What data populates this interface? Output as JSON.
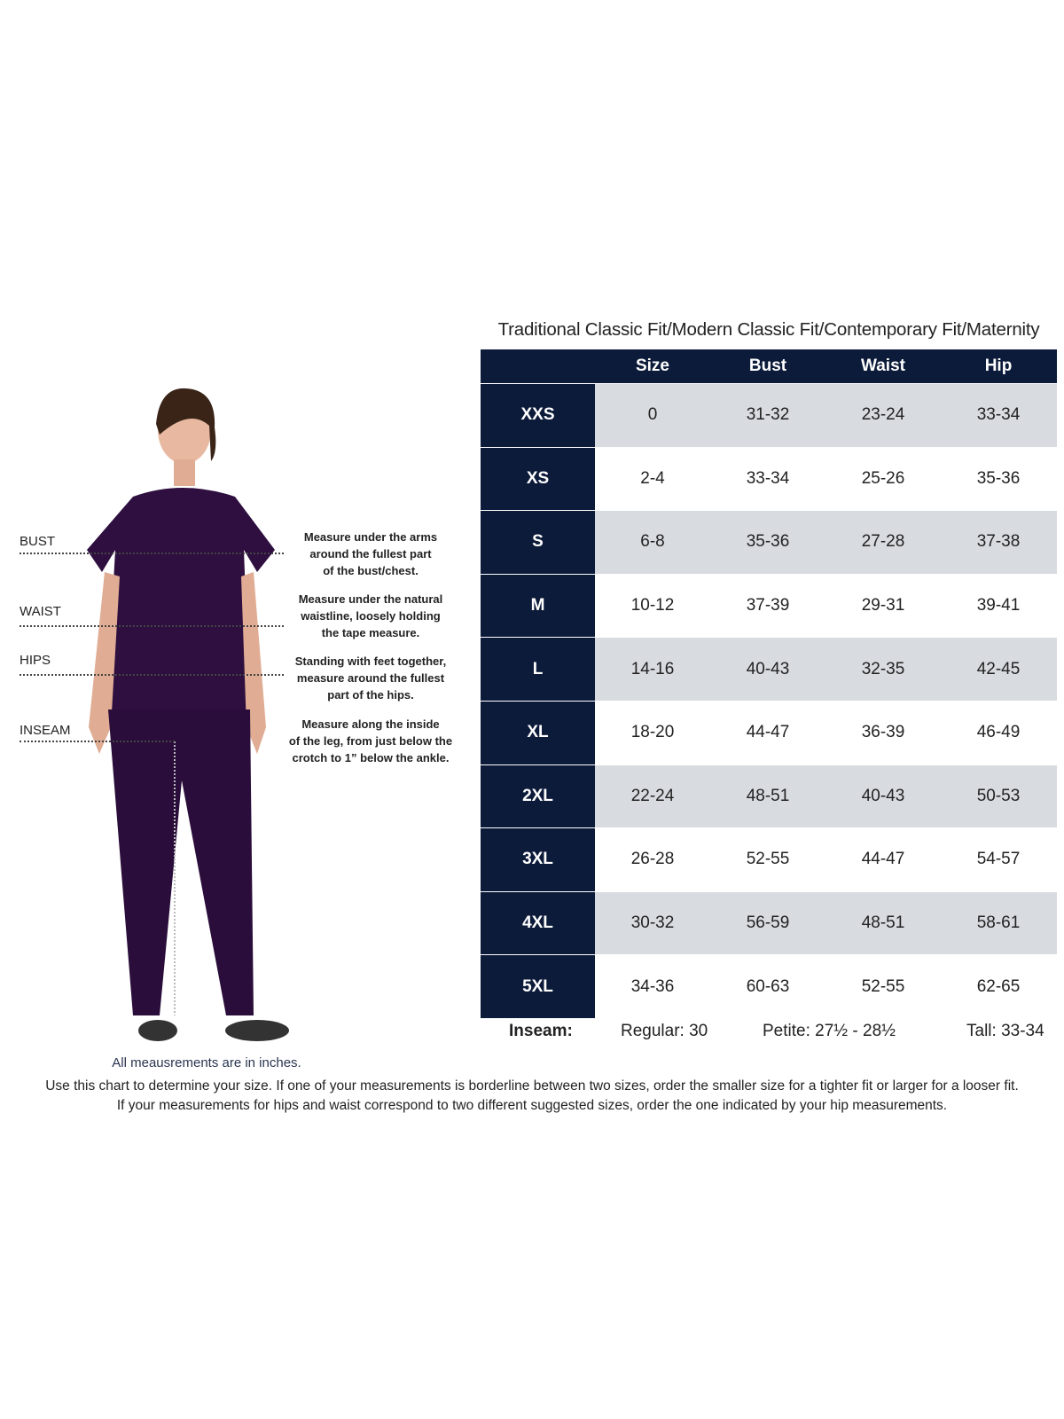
{
  "title": "Traditional Classic Fit/Modern Classic Fit/Contemporary Fit/Maternity",
  "table": {
    "columns": [
      "Size",
      "Bust",
      "Waist",
      "Hip"
    ],
    "rows": [
      {
        "label": "XXS",
        "size": "0",
        "bust": "31-32",
        "waist": "23-24",
        "hip": "33-34"
      },
      {
        "label": "XS",
        "size": "2-4",
        "bust": "33-34",
        "waist": "25-26",
        "hip": "35-36"
      },
      {
        "label": "S",
        "size": "6-8",
        "bust": "35-36",
        "waist": "27-28",
        "hip": "37-38"
      },
      {
        "label": "M",
        "size": "10-12",
        "bust": "37-39",
        "waist": "29-31",
        "hip": "39-41"
      },
      {
        "label": "L",
        "size": "14-16",
        "bust": "40-43",
        "waist": "32-35",
        "hip": "42-45"
      },
      {
        "label": "XL",
        "size": "18-20",
        "bust": "44-47",
        "waist": "36-39",
        "hip": "46-49"
      },
      {
        "label": "2XL",
        "size": "22-24",
        "bust": "48-51",
        "waist": "40-43",
        "hip": "50-53"
      },
      {
        "label": "3XL",
        "size": "26-28",
        "bust": "52-55",
        "waist": "44-47",
        "hip": "54-57"
      },
      {
        "label": "4XL",
        "size": "30-32",
        "bust": "56-59",
        "waist": "48-51",
        "hip": "58-61"
      },
      {
        "label": "5XL",
        "size": "34-36",
        "bust": "60-63",
        "waist": "52-55",
        "hip": "62-65"
      }
    ]
  },
  "inseam": {
    "label": "Inseam:",
    "regular": "Regular: 30",
    "petite": "Petite: 27½ - 28½",
    "tall": "Tall: 33-34"
  },
  "measure": [
    {
      "label": "BUST",
      "desc": [
        "Measure under the arms",
        "around the fullest part",
        "of the bust/chest."
      ]
    },
    {
      "label": "WAIST",
      "desc": [
        "Measure under the natural",
        "waistline, loosely holding",
        "the tape measure."
      ]
    },
    {
      "label": "HIPS",
      "desc": [
        "Standing with feet together,",
        "measure around the fullest",
        "part of the hips."
      ]
    },
    {
      "label": "INSEAM",
      "desc": [
        "Measure along the inside",
        "of the leg, from just below the",
        "crotch to 1” below the ankle."
      ]
    }
  ],
  "units_note": "All meausrements are in inches.",
  "footer": [
    "Use this chart to determine your size. If one of your measurements is borderline between two sizes, order the smaller size for a tighter fit or larger for a looser fit.",
    "If your measurements for hips and waist correspond to two different suggested sizes, order the one indicated by your hip measurements."
  ],
  "colors": {
    "header": "#0d1b3a",
    "shade": "#d8dbe0",
    "scrubs": "#2e0f3f"
  }
}
